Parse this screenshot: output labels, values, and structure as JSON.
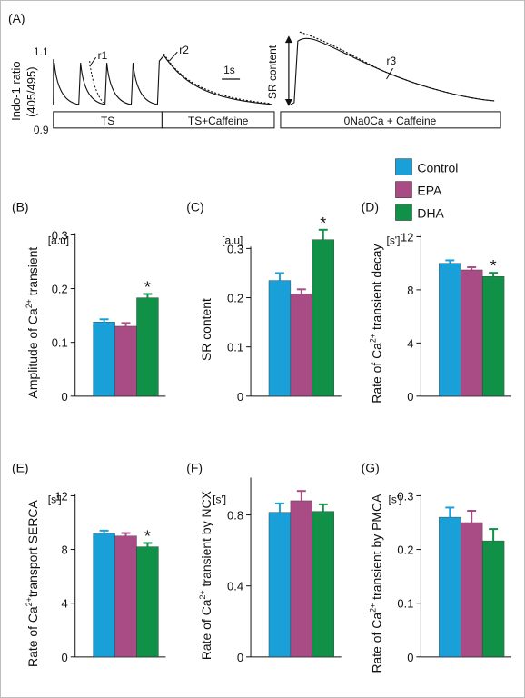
{
  "colors": {
    "control": "#1aa0d8",
    "epa": "#a94b84",
    "dha": "#119048",
    "trace": "#111111",
    "axis": "#111111"
  },
  "trace_panel": {
    "label": "(A)",
    "ylabel_line1": "Indo-1 ratio",
    "ylabel_line2": "(405/495)",
    "ytick_top": "1.1",
    "ytick_bottom": "0.9",
    "scale_bar": "1s",
    "sr_content_label": "SR content",
    "rate_labels": [
      "r1",
      "r2",
      "r3"
    ],
    "protocol_bars": [
      "TS",
      "TS+Caffeine",
      "0Na0Ca + Caffeine"
    ]
  },
  "legend": [
    "Control",
    "EPA",
    "DHA"
  ],
  "significance_marker": "*",
  "chart_data": [
    {
      "type": "bar",
      "panel": "(B)",
      "unit": "[a.u]",
      "ylabel_parts": [
        "Amplitude of Ca",
        "2+",
        " transient"
      ],
      "categories": [
        "Control",
        "EPA",
        "DHA"
      ],
      "values": [
        0.138,
        0.13,
        0.183
      ],
      "errors": [
        0.005,
        0.006,
        0.007
      ],
      "significant": [
        false,
        false,
        true
      ],
      "ylim": [
        0,
        0.3
      ],
      "yticks": [
        "0",
        "0.1",
        "0.2",
        "0.3"
      ]
    },
    {
      "type": "bar",
      "panel": "(C)",
      "unit": "[a.u]",
      "ylabel_parts": [
        "SR content",
        "",
        ""
      ],
      "categories": [
        "Control",
        "EPA",
        "DHA"
      ],
      "values": [
        0.235,
        0.208,
        0.318
      ],
      "errors": [
        0.015,
        0.009,
        0.02
      ],
      "significant": [
        false,
        false,
        true
      ],
      "ylim": [
        0,
        0.3
      ],
      "yticks": [
        "0",
        "0.1",
        "0.2",
        "0.3"
      ]
    },
    {
      "type": "bar",
      "panel": "(D)",
      "unit": "[s']",
      "ylabel_parts": [
        "Rate of Ca",
        "2+",
        " transient decay"
      ],
      "categories": [
        "Control",
        "EPA",
        "DHA"
      ],
      "values": [
        10.0,
        9.5,
        9.0
      ],
      "errors": [
        0.22,
        0.2,
        0.28
      ],
      "significant": [
        false,
        false,
        true
      ],
      "ylim": [
        0,
        12
      ],
      "yticks": [
        "0",
        "4",
        "8",
        "12"
      ]
    },
    {
      "type": "bar",
      "panel": "(E)",
      "unit": "[s']",
      "ylabel_parts": [
        "Rate of Ca",
        "2+",
        "transport SERCA"
      ],
      "categories": [
        "Control",
        "EPA",
        "DHA"
      ],
      "values": [
        9.2,
        9.0,
        8.2
      ],
      "errors": [
        0.2,
        0.22,
        0.28
      ],
      "significant": [
        false,
        false,
        true
      ],
      "ylim": [
        0,
        12
      ],
      "yticks": [
        "0",
        "4",
        "8",
        "12"
      ]
    },
    {
      "type": "bar",
      "panel": "(F)",
      "unit": "[s']",
      "ylabel_parts": [
        "Rate of Ca",
        "2+",
        " transient by NCX"
      ],
      "categories": [
        "Control",
        "EPA",
        "DHA"
      ],
      "values": [
        0.815,
        0.88,
        0.82
      ],
      "errors": [
        0.05,
        0.055,
        0.04
      ],
      "significant": [
        false,
        false,
        false
      ],
      "ylim": [
        0,
        1.0
      ],
      "yticks": [
        "0",
        "0.4",
        "0.8"
      ]
    },
    {
      "type": "bar",
      "panel": "(G)",
      "unit": "[s']",
      "ylabel_parts": [
        "Rate of Ca",
        "2+",
        " transient by PMCA"
      ],
      "categories": [
        "Control",
        "EPA",
        "DHA"
      ],
      "values": [
        0.26,
        0.25,
        0.216
      ],
      "errors": [
        0.018,
        0.022,
        0.022
      ],
      "significant": [
        false,
        false,
        false
      ],
      "ylim": [
        0,
        0.3
      ],
      "yticks": [
        "0",
        "0.1",
        "0.2",
        "0.3"
      ]
    }
  ]
}
